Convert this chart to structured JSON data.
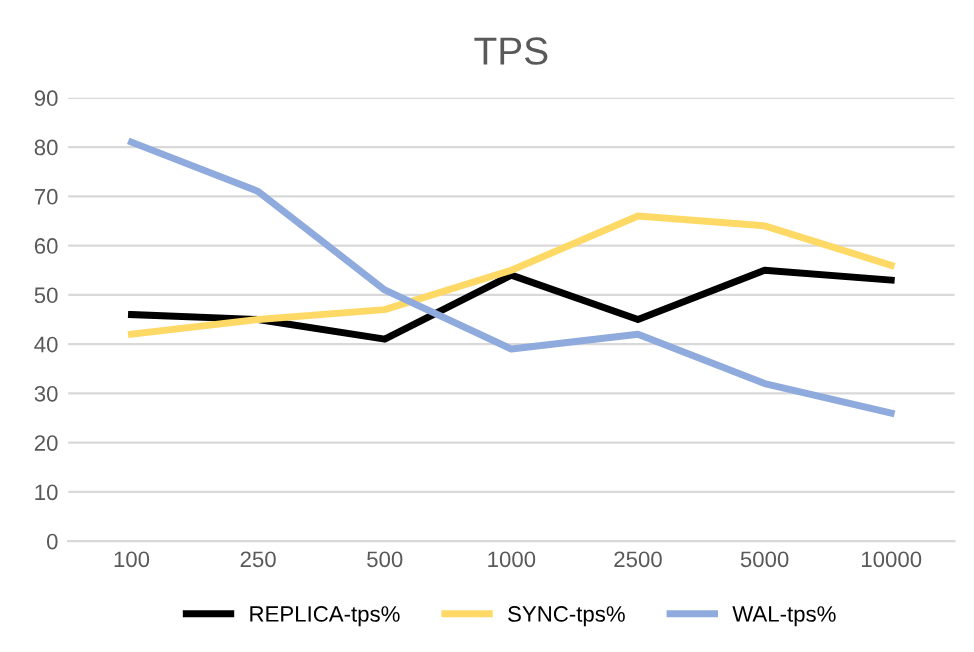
{
  "chart_data": {
    "type": "line",
    "title": "TPS",
    "categories": [
      "100",
      "250",
      "500",
      "1000",
      "2500",
      "5000",
      "10000"
    ],
    "series": [
      {
        "name": "REPLICA-tps%",
        "color": "#000000",
        "values": [
          46,
          45,
          41,
          54,
          45,
          55,
          53
        ]
      },
      {
        "name": "SYNC-tps%",
        "color": "#ffd966",
        "values": [
          42,
          45,
          47,
          55,
          66,
          64,
          56
        ]
      },
      {
        "name": "WAL-tps%",
        "color": "#8faadc",
        "values": [
          81,
          71,
          51,
          39,
          42,
          32,
          26
        ]
      }
    ],
    "ylim": [
      0,
      90
    ],
    "yticks": [
      0,
      10,
      20,
      30,
      40,
      50,
      60,
      70,
      80,
      90
    ],
    "grid": "y",
    "legend": "bottom",
    "marker": "none",
    "line_style": "solid"
  }
}
